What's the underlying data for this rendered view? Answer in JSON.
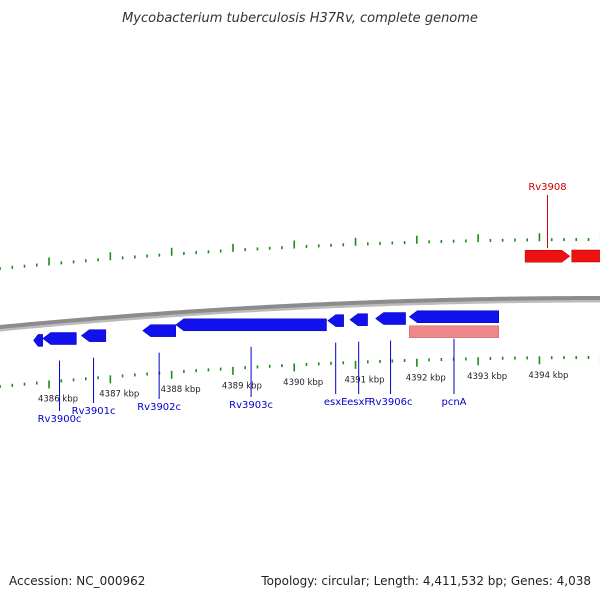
{
  "title": "Mycobacterium tuberculosis H37Rv, complete genome",
  "footer": {
    "accession": "Accession: NC_000962",
    "summary": "Topology: circular; Length: 4,411,532 bp; Genes: 4,038"
  },
  "colors": {
    "forward_gene": "#ee1111",
    "reverse_gene": "#1111ee",
    "pseudo_feature": "#ee8888",
    "backbone": "#8c8c8c",
    "tick": "#1a8c1a",
    "label_forward": "#cc0000",
    "label_reverse": "#0000cc"
  },
  "scale_labels": [
    {
      "kb": 4386,
      "text": "4386 kbp"
    },
    {
      "kb": 4387,
      "text": "4387 kbp"
    },
    {
      "kb": 4388,
      "text": "4388 kbp"
    },
    {
      "kb": 4389,
      "text": "4389 kbp"
    },
    {
      "kb": 4390,
      "text": "4390 kbp"
    },
    {
      "kb": 4391,
      "text": "4391 kbp"
    },
    {
      "kb": 4392,
      "text": "4392 kbp"
    },
    {
      "kb": 4393,
      "text": "4393 kbp"
    },
    {
      "kb": 4394,
      "text": "4394 kbp"
    }
  ],
  "genes": [
    {
      "name": "Rv3900c",
      "strand": "-",
      "start_kb": 4385.6,
      "end_kb": 4385.75
    },
    {
      "name": "Rv3900c",
      "strand": "-",
      "start_kb": 4385.75,
      "end_kb": 4386.3,
      "labeled": true
    },
    {
      "name": "Rv3901c",
      "strand": "-",
      "start_kb": 4386.38,
      "end_kb": 4386.78,
      "labeled": true
    },
    {
      "name": "Rv3902c",
      "strand": "-",
      "start_kb": 4387.38,
      "end_kb": 4387.92,
      "labeled": true
    },
    {
      "name": "Rv3903c",
      "strand": "-",
      "start_kb": 4387.92,
      "end_kb": 4390.38,
      "labeled": true
    },
    {
      "name": "esxE",
      "strand": "-",
      "start_kb": 4390.4,
      "end_kb": 4390.66,
      "labeled": true
    },
    {
      "name": "esxF",
      "strand": "-",
      "start_kb": 4390.76,
      "end_kb": 4391.05,
      "labeled": true
    },
    {
      "name": "Rv3906c",
      "strand": "-",
      "start_kb": 4391.18,
      "end_kb": 4391.67,
      "labeled": true
    },
    {
      "name": "pcnA",
      "strand": "-",
      "start_kb": 4391.73,
      "end_kb": 4393.19,
      "labeled": true
    },
    {
      "name": "pcnA",
      "strand": "-",
      "start_kb": 4391.73,
      "end_kb": 4393.19,
      "pseudo": true
    },
    {
      "name": "Rv3908",
      "strand": "+",
      "start_kb": 4393.62,
      "end_kb": 4394.35,
      "labeled": true
    },
    {
      "name": "Rv3908",
      "strand": "+",
      "start_kb": 4394.38,
      "end_kb": 4395.1
    }
  ]
}
